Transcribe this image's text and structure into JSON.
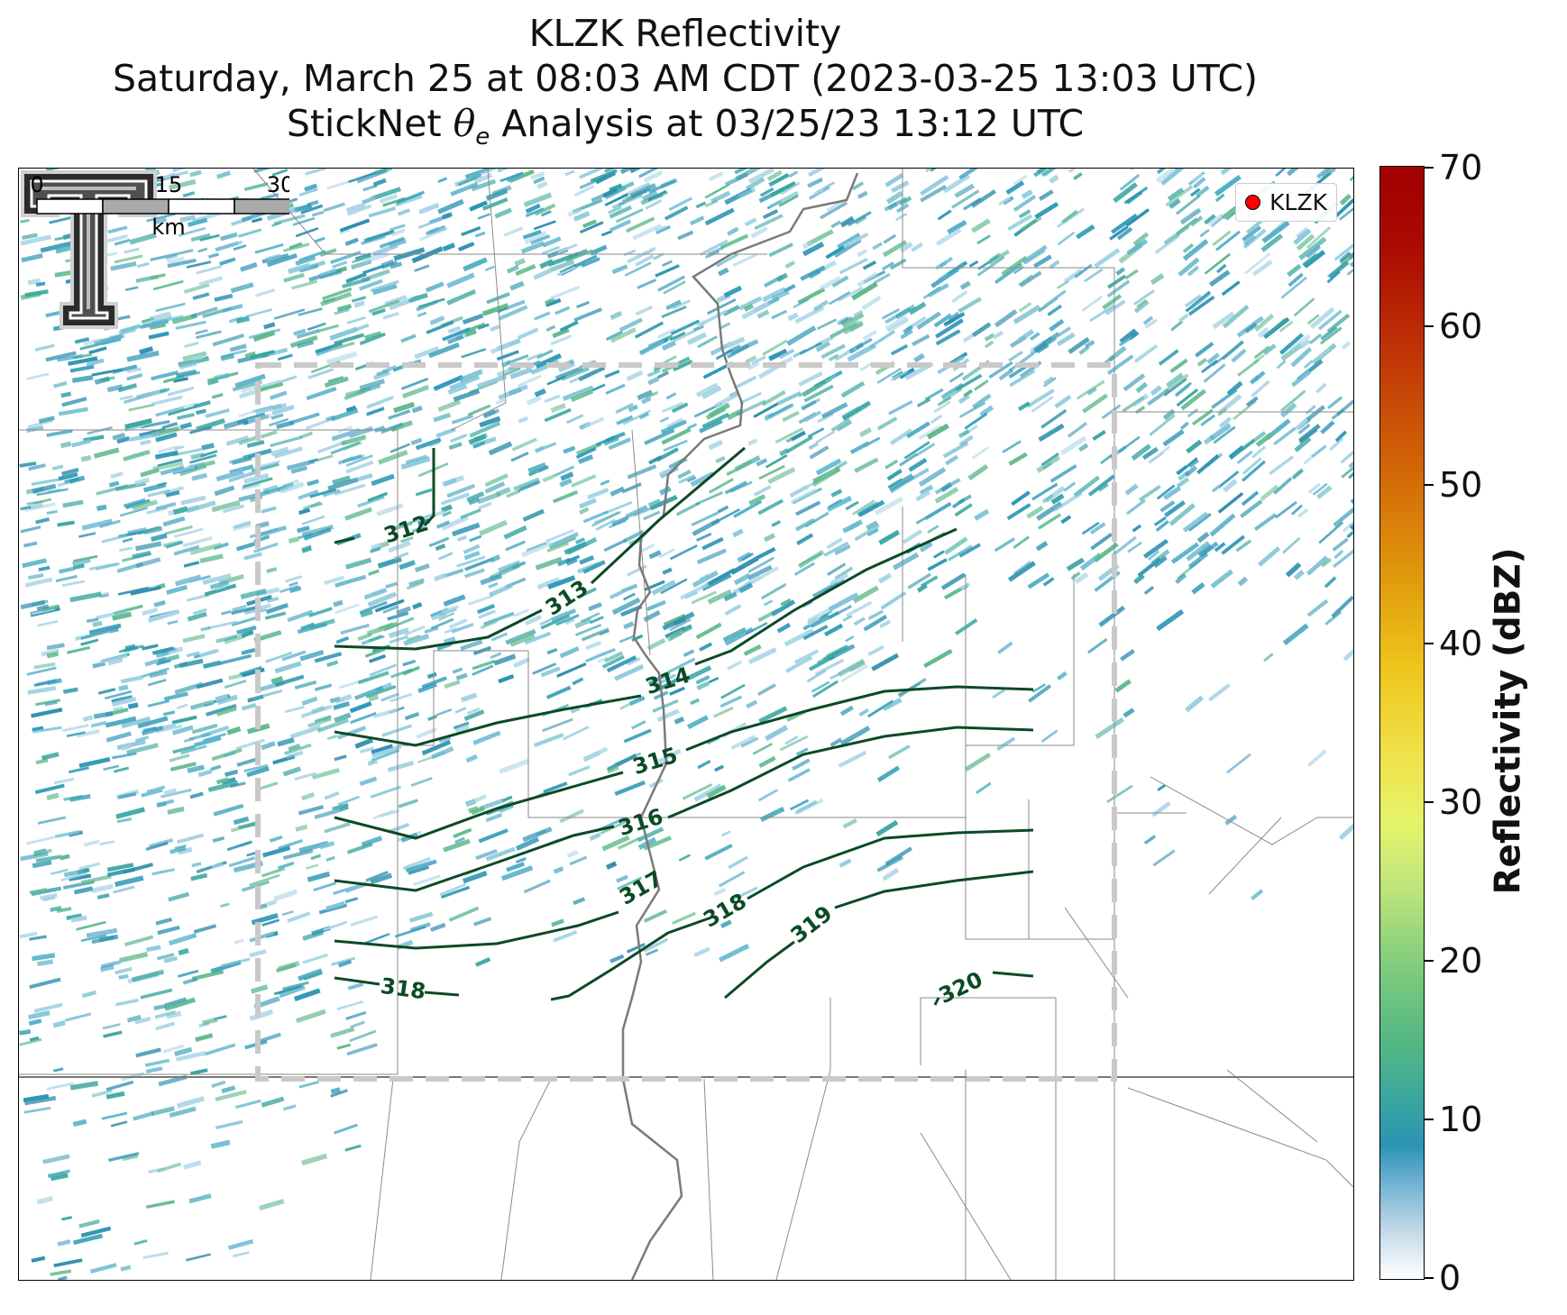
{
  "title": {
    "line1": "KLZK Reflectivity",
    "line2": "Saturday, March 25 at 08:03 AM CDT (2023-03-25 13:03 UTC)",
    "line3_prefix": "StickNet ",
    "line3_theta": "θ",
    "line3_sub": "e",
    "line3_suffix": " Analysis at 03/25/23 13:12 UTC"
  },
  "legend": {
    "label": "KLZK",
    "marker_color": "#ff0000"
  },
  "logo": {
    "icon": "texas-tech-double-t-logo"
  },
  "contour_color": "#0b4a25",
  "contour_labels": [
    "312",
    "313",
    "314",
    "315",
    "316",
    "317",
    "318",
    "319",
    "320",
    "318"
  ],
  "scalebar": {
    "ticks": [
      "0",
      "15",
      "30"
    ],
    "unit": "km"
  },
  "colorbar": {
    "label": "Reflectivity (dBZ)",
    "ticks": [
      "70",
      "60",
      "50",
      "40",
      "30",
      "20",
      "10",
      "0"
    ],
    "range": [
      0,
      70
    ]
  }
}
